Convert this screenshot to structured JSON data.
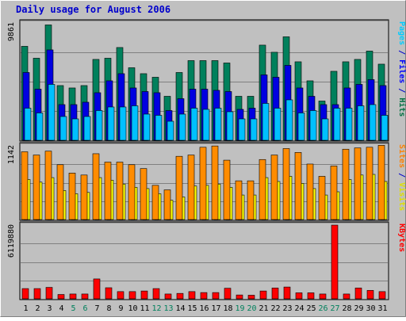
{
  "chart_data": {
    "type": "bar",
    "title": "Daily usage for August 2006",
    "days": [
      {
        "label": "1",
        "weekend": false
      },
      {
        "label": "2",
        "weekend": false
      },
      {
        "label": "3",
        "weekend": false
      },
      {
        "label": "4",
        "weekend": false
      },
      {
        "label": "5",
        "weekend": true
      },
      {
        "label": "6",
        "weekend": true
      },
      {
        "label": "7",
        "weekend": false
      },
      {
        "label": "8",
        "weekend": false
      },
      {
        "label": "9",
        "weekend": false
      },
      {
        "label": "10",
        "weekend": false
      },
      {
        "label": "11",
        "weekend": false
      },
      {
        "label": "12",
        "weekend": true
      },
      {
        "label": "13",
        "weekend": true
      },
      {
        "label": "14",
        "weekend": false
      },
      {
        "label": "15",
        "weekend": false
      },
      {
        "label": "16",
        "weekend": false
      },
      {
        "label": "17",
        "weekend": false
      },
      {
        "label": "18",
        "weekend": false
      },
      {
        "label": "19",
        "weekend": true
      },
      {
        "label": "20",
        "weekend": true
      },
      {
        "label": "21",
        "weekend": false
      },
      {
        "label": "22",
        "weekend": false
      },
      {
        "label": "23",
        "weekend": false
      },
      {
        "label": "24",
        "weekend": false
      },
      {
        "label": "25",
        "weekend": false
      },
      {
        "label": "26",
        "weekend": true
      },
      {
        "label": "27",
        "weekend": true
      },
      {
        "label": "28",
        "weekend": false
      },
      {
        "label": "29",
        "weekend": false
      },
      {
        "label": "30",
        "weekend": false
      },
      {
        "label": "31",
        "weekend": false
      }
    ],
    "panels": [
      {
        "max_label": "9861",
        "ymax": 9861,
        "axis_legend": [
          {
            "text": "Pages",
            "color": "#00ccff"
          },
          {
            "text": " / ",
            "color": "#0000cc"
          },
          {
            "text": "Files",
            "color": "#0000ff"
          },
          {
            "text": " / ",
            "color": "#0000cc"
          },
          {
            "text": "Hits",
            "color": "#007040"
          }
        ],
        "series": [
          {
            "name": "Hits",
            "color": "#00805c",
            "values": [
              7900,
              6900,
              9700,
              4600,
              4400,
              4600,
              6800,
              6900,
              7800,
              6100,
              5600,
              5300,
              3700,
              5700,
              6700,
              6700,
              6700,
              6500,
              3700,
              3700,
              8000,
              7400,
              8700,
              6600,
              5000,
              3300,
              5800,
              6600,
              6800,
              7500,
              6400
            ]
          },
          {
            "name": "Files",
            "color": "#0000e0",
            "values": [
              5700,
              4300,
              7600,
              3000,
              3000,
              3200,
              4000,
              5000,
              5600,
              4400,
              4100,
              4000,
              2500,
              3500,
              4300,
              4300,
              4200,
              4100,
              2600,
              2700,
              5500,
              5300,
              6300,
              4400,
              3700,
              3000,
              3000,
              4400,
              4700,
              5100,
              4600
            ]
          },
          {
            "name": "Pages",
            "color": "#00c0ff",
            "values": [
              2700,
              2300,
              4700,
              2000,
              1800,
              2000,
              2500,
              2800,
              2800,
              2900,
              2200,
              2100,
              1600,
              2200,
              2700,
              2600,
              2700,
              2400,
              1800,
              1800,
              3100,
              2700,
              3400,
              2300,
              2500,
              1800,
              2700,
              2700,
              2900,
              3000,
              2100
            ]
          }
        ]
      },
      {
        "max_label": "1142",
        "ymax": 1142,
        "axis_legend": [
          {
            "text": "Sites",
            "color": "#ff8000"
          },
          {
            "text": " / ",
            "color": "#0000cc"
          },
          {
            "text": "Visits",
            "color": "#e0e000"
          }
        ],
        "series": [
          {
            "name": "Visits",
            "color": "#ffff00",
            "values": [
              620,
              580,
              650,
              450,
              400,
              420,
              650,
              610,
              550,
              500,
              480,
              400,
              300,
              350,
              520,
              530,
              550,
              500,
              380,
              380,
              650,
              590,
              670,
              560,
              480,
              380,
              430,
              620,
              690,
              700,
              590
            ]
          },
          {
            "name": "Sites",
            "color": "#ff8c00",
            "values": [
              1050,
              1000,
              1060,
              850,
              720,
              690,
              1020,
              890,
              890,
              850,
              790,
              530,
              460,
              980,
              1000,
              1120,
              1140,
              920,
              600,
              600,
              930,
              1000,
              1100,
              1040,
              860,
              670,
              830,
              1090,
              1110,
              1120,
              1150
            ]
          }
        ]
      },
      {
        "max_label": "6119880",
        "ymax": 6119880,
        "axis_legend": [
          {
            "text": "KBytes",
            "color": "#ff0000"
          }
        ],
        "series": [
          {
            "name": "KBytes",
            "color": "#ff0000",
            "values": [
              850000,
              850000,
              950000,
              360000,
              400000,
              400000,
              1650000,
              920000,
              600000,
              600000,
              650000,
              850000,
              400000,
              450000,
              600000,
              520000,
              520000,
              880000,
              320000,
              300000,
              650000,
              900000,
              980000,
              500000,
              500000,
              400000,
              6119880,
              400000,
              900000,
              700000,
              600000
            ]
          }
        ]
      }
    ]
  }
}
